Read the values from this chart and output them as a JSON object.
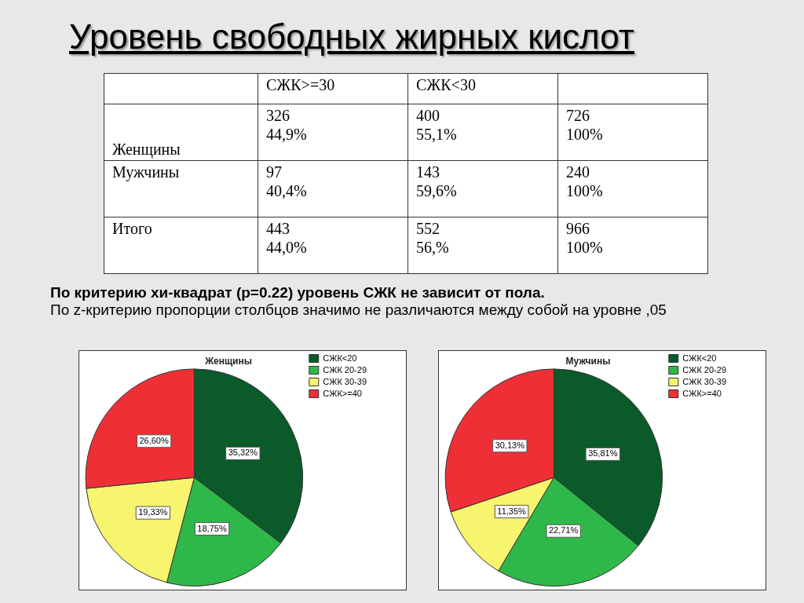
{
  "chart_data": [
    {
      "type": "other",
      "title": "Уровень свободных жирных кислот",
      "categories": [
        null,
        "СЖК>=30",
        "СЖК<30",
        null
      ],
      "y_categories": [
        "Женщины",
        "Мужчины",
        "Итого"
      ],
      "cell_labels": [
        [
          "326\n44,9%",
          "400\n55,1%",
          "726\n100%"
        ],
        [
          "97\n40,4%",
          "143\n59,6%",
          "240\n100%"
        ],
        [
          "443\n44,0%",
          "552\n56,%",
          "966\n100%"
        ]
      ],
      "annotations": [
        "По критерию хи-квадрат (р=0.22) уровень СЖК не зависит от пола.",
        "По z-критерию пропорции столбцов значимо не различаются между собой на уровне ,05"
      ]
    },
    {
      "type": "pie",
      "title": "Женщины",
      "categories": [
        "СЖК<20",
        "СЖК 20-29",
        "СЖК 30-39",
        "СЖК>=40"
      ],
      "values": [
        35.32,
        18.75,
        19.33,
        26.6
      ],
      "value_labels": [
        "35,32%",
        "18,75%",
        "19,33%",
        "26,60%"
      ],
      "colors": [
        "#0b5a2a",
        "#2fb84a",
        "#f7f46e",
        "#ee3036"
      ],
      "legend": "top right"
    },
    {
      "type": "pie",
      "title": "Мужчины",
      "categories": [
        "СЖК<20",
        "СЖК 20-29",
        "СЖК 30-39",
        "СЖК>=40"
      ],
      "values": [
        35.81,
        22.71,
        11.35,
        30.13
      ],
      "value_labels": [
        "35,81%",
        "22,71%",
        "11,35%",
        "30,13%"
      ],
      "colors": [
        "#0b5a2a",
        "#2fb84a",
        "#f7f46e",
        "#ee3036"
      ],
      "legend": "top right"
    }
  ]
}
